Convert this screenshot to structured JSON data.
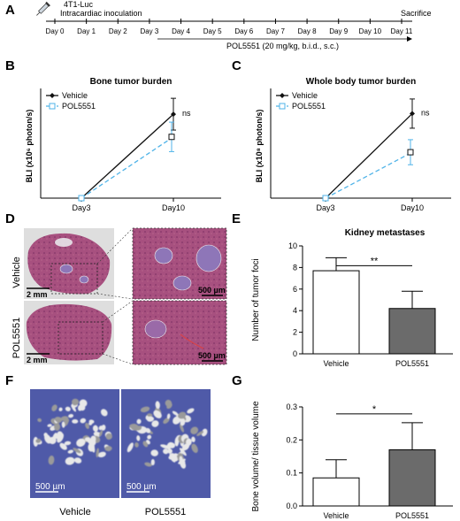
{
  "panels": {
    "A": {
      "letter": "A",
      "injection_label": "4T1-Luc",
      "injection_sublabel": "Intracardiac inoculation",
      "endpoint_label": "Sacrifice",
      "days": [
        "Day 0",
        "Day 1",
        "Day 2",
        "Day 3",
        "Day 4",
        "Day 5",
        "Day 6",
        "Day 7",
        "Day 8",
        "Day 9",
        "Day 10",
        "Day 11"
      ],
      "treatment_label": "POL5551 (20 mg/kg, b.i.d., s.c.)"
    },
    "B": {
      "letter": "B"
    },
    "C": {
      "letter": "C"
    },
    "D": {
      "letter": "D",
      "row_labels": [
        "Vehicle",
        "POL5551"
      ],
      "scale_low": "2 mm",
      "scale_high": "500 µm"
    },
    "E": {
      "letter": "E"
    },
    "F": {
      "letter": "F",
      "scale_label": "500 µm",
      "captions": [
        "Vehicle",
        "POL5551"
      ]
    },
    "G": {
      "letter": "G"
    }
  },
  "chart_data": [
    {
      "panel": "B",
      "type": "line",
      "title": "Bone tumor burden",
      "xlabel": "",
      "ylabel": "BLI (x10⁶ photon/s)",
      "categories": [
        "Day3",
        "Day10"
      ],
      "series": [
        {
          "name": "Vehicle",
          "values": [
            0,
            3.7
          ],
          "error": [
            0,
            0.7
          ],
          "color": "#111111",
          "style": "solid",
          "marker": "diamond"
        },
        {
          "name": "POL5551",
          "values": [
            0,
            2.7
          ],
          "error": [
            0,
            0.65
          ],
          "color": "#4fb3e8",
          "style": "dashed",
          "marker": "square"
        }
      ],
      "ylim": [
        0,
        4.6
      ],
      "annotations": [
        "ns"
      ],
      "legend": "top-left"
    },
    {
      "panel": "C",
      "type": "line",
      "title": "Whole body tumor burden",
      "xlabel": "",
      "ylabel": "BLI (x10⁸ photon/s)",
      "categories": [
        "Day3",
        "Day10"
      ],
      "series": [
        {
          "name": "Vehicle",
          "values": [
            0,
            4.05
          ],
          "error": [
            0,
            0.7
          ],
          "color": "#111111",
          "style": "solid",
          "marker": "diamond"
        },
        {
          "name": "POL5551",
          "values": [
            0,
            2.2
          ],
          "error": [
            0,
            0.6
          ],
          "color": "#4fb3e8",
          "style": "dashed",
          "marker": "square"
        }
      ],
      "ylim": [
        0,
        5
      ],
      "annotations": [
        "ns"
      ],
      "legend": "top-left"
    },
    {
      "panel": "E",
      "type": "bar",
      "title": "Kidney metastases",
      "xlabel": "",
      "ylabel": "Number of tumor foci",
      "categories": [
        "Vehicle",
        "POL5551"
      ],
      "values": [
        7.7,
        4.2
      ],
      "errors": [
        1.2,
        1.6
      ],
      "colors": [
        "#ffffff",
        "#6b6b6b"
      ],
      "ylim": [
        0,
        10
      ],
      "yticks": [
        "0",
        "2",
        "4",
        "6",
        "8",
        "10"
      ],
      "annotations": [
        "**"
      ]
    },
    {
      "panel": "G",
      "type": "bar",
      "title": "",
      "xlabel": "",
      "ylabel": "Bone volume/ tissue volume",
      "categories": [
        "Vehicle",
        "POL5551"
      ],
      "values": [
        0.085,
        0.17
      ],
      "errors": [
        0.055,
        0.082
      ],
      "colors": [
        "#ffffff",
        "#6b6b6b"
      ],
      "ylim": [
        0,
        0.3
      ],
      "yticks": [
        "0.0",
        "0.1",
        "0.2",
        "0.3"
      ],
      "annotations": [
        "*"
      ]
    }
  ]
}
